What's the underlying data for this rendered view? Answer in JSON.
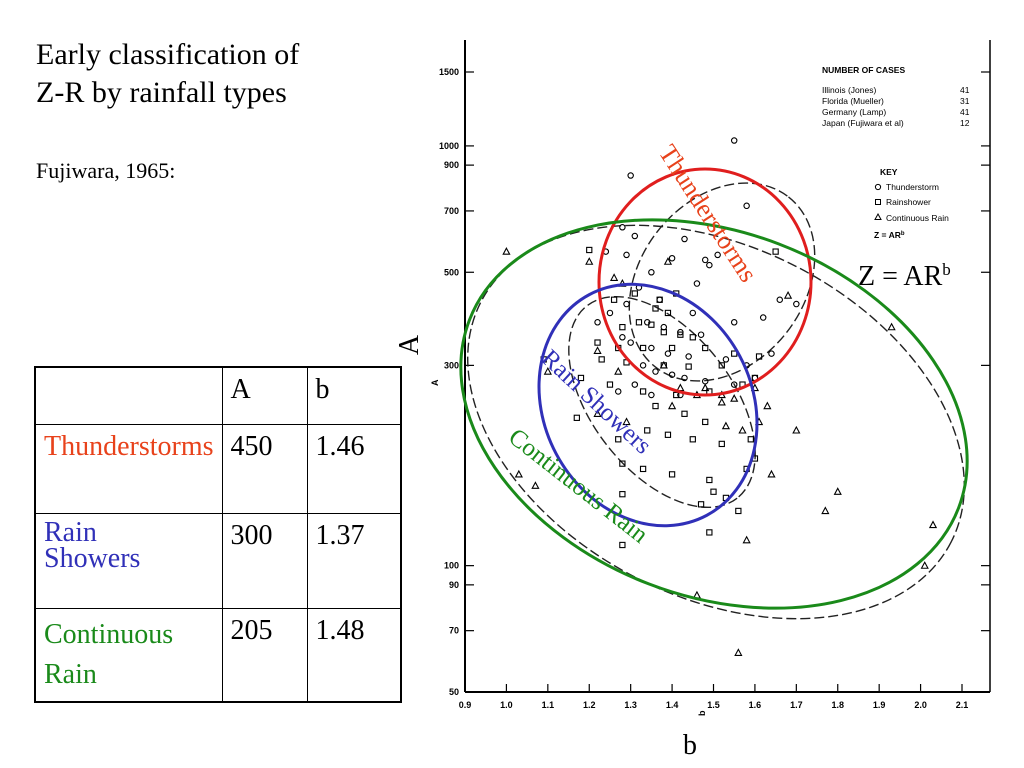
{
  "slide": {
    "title_line1": "Early classification of",
    "title_line2": "Z-R by rainfall  types",
    "subtitle": "Fujiwara, 1965:"
  },
  "table": {
    "headers": [
      "",
      "A",
      "b"
    ],
    "rows": [
      {
        "name": "Thunderstorms",
        "A": "450",
        "b": "1.46",
        "color": "#e8421b"
      },
      {
        "name_line1": "Rain",
        "name_line2": "Showers",
        "A": "300",
        "b": "1.37",
        "color": "#3030b8"
      },
      {
        "name_line1": "Continuous",
        "name_line2": "Rain",
        "A": "205",
        "b": "1.48",
        "color": "#1a8a1a"
      }
    ]
  },
  "chart_data": {
    "type": "scatter",
    "xlabel": "b",
    "ylabel": "A",
    "xscale": "linear",
    "yscale": "log",
    "xlim": [
      0.9,
      2.1
    ],
    "ylim": [
      50,
      1500
    ],
    "x_ticks": [
      "0.9",
      "1.0",
      "1.1",
      "1.2",
      "1.3",
      "1.4",
      "1.5",
      "1.6",
      "1.7",
      "1.8",
      "1.9",
      "2.0",
      "2.1"
    ],
    "y_ticks": [
      {
        "value": 50,
        "label": "50"
      },
      {
        "value": 70,
        "label": "70"
      },
      {
        "value": 90,
        "label": "90"
      },
      {
        "value": 100,
        "label": "100"
      },
      {
        "value": 300,
        "label": "300"
      },
      {
        "value": 500,
        "label": "500"
      },
      {
        "value": 700,
        "label": "700"
      },
      {
        "value": 900,
        "label": "900"
      },
      {
        "value": 1000,
        "label": "1000"
      },
      {
        "value": 1500,
        "label": "1500"
      }
    ],
    "inner_axis_labels": {
      "x": "b",
      "y": "A"
    },
    "equation": "Z = AR",
    "equation_sup": "b",
    "legend": {
      "title": "NUMBER OF CASES",
      "cases": [
        {
          "label": "Illinois (Jones)",
          "n": "41"
        },
        {
          "label": "Florida (Mueller)",
          "n": "31"
        },
        {
          "label": "Germany (Lamp)",
          "n": "41"
        },
        {
          "label": "Japan (Fujiwara et al)",
          "n": "12"
        }
      ],
      "key_title": "KEY",
      "key": [
        {
          "symbol": "circle",
          "label": "Thunderstorm"
        },
        {
          "symbol": "square",
          "label": "Rainshower"
        },
        {
          "symbol": "triangle",
          "label": "Continuous Rain"
        }
      ],
      "formula": "Z = AR",
      "formula_sup": "b"
    },
    "regions": [
      {
        "name": "Thunderstorms",
        "color": "#e8421b"
      },
      {
        "name": "Rain Showers",
        "color": "#3030b8"
      },
      {
        "name": "Continuous Rain",
        "color": "#1a8a1a"
      }
    ],
    "series": [
      {
        "name": "Thunderstorm",
        "symbol": "circle",
        "points": [
          [
            1.55,
            1030
          ],
          [
            1.3,
            850
          ],
          [
            1.58,
            720
          ],
          [
            1.28,
            640
          ],
          [
            1.31,
            610
          ],
          [
            1.43,
            600
          ],
          [
            1.24,
            560
          ],
          [
            1.29,
            550
          ],
          [
            1.4,
            540
          ],
          [
            1.51,
            550
          ],
          [
            1.48,
            535
          ],
          [
            1.49,
            520
          ],
          [
            1.32,
            460
          ],
          [
            1.37,
            430
          ],
          [
            1.45,
            400
          ],
          [
            1.55,
            380
          ],
          [
            1.62,
            390
          ],
          [
            1.66,
            430
          ],
          [
            1.7,
            420
          ],
          [
            1.34,
            380
          ],
          [
            1.38,
            370
          ],
          [
            1.42,
            360
          ],
          [
            1.47,
            355
          ],
          [
            1.28,
            350
          ],
          [
            1.3,
            340
          ],
          [
            1.35,
            330
          ],
          [
            1.39,
            320
          ],
          [
            1.44,
            315
          ],
          [
            1.53,
            310
          ],
          [
            1.58,
            300
          ],
          [
            1.33,
            300
          ],
          [
            1.36,
            290
          ],
          [
            1.4,
            285
          ],
          [
            1.43,
            280
          ],
          [
            1.48,
            275
          ],
          [
            1.31,
            270
          ],
          [
            1.27,
            260
          ],
          [
            1.35,
            255
          ],
          [
            1.42,
            255
          ],
          [
            1.55,
            270
          ],
          [
            1.6,
            280
          ],
          [
            1.64,
            320
          ],
          [
            1.25,
            400
          ],
          [
            1.29,
            420
          ],
          [
            1.22,
            380
          ],
          [
            1.35,
            500
          ],
          [
            1.46,
            470
          ]
        ]
      },
      {
        "name": "Rainshower",
        "symbol": "square",
        "points": [
          [
            1.2,
            565
          ],
          [
            1.31,
            445
          ],
          [
            1.41,
            445
          ],
          [
            1.26,
            430
          ],
          [
            1.37,
            430
          ],
          [
            1.36,
            410
          ],
          [
            1.39,
            400
          ],
          [
            1.32,
            380
          ],
          [
            1.35,
            375
          ],
          [
            1.28,
            370
          ],
          [
            1.38,
            360
          ],
          [
            1.42,
            355
          ],
          [
            1.45,
            350
          ],
          [
            1.22,
            340
          ],
          [
            1.27,
            330
          ],
          [
            1.33,
            330
          ],
          [
            1.4,
            330
          ],
          [
            1.48,
            330
          ],
          [
            1.55,
            320
          ],
          [
            1.61,
            315
          ],
          [
            1.23,
            310
          ],
          [
            1.29,
            305
          ],
          [
            1.38,
            300
          ],
          [
            1.44,
            298
          ],
          [
            1.52,
            300
          ],
          [
            1.09,
            310
          ],
          [
            1.18,
            280
          ],
          [
            1.25,
            270
          ],
          [
            1.33,
            260
          ],
          [
            1.41,
            255
          ],
          [
            1.49,
            260
          ],
          [
            1.57,
            270
          ],
          [
            1.6,
            280
          ],
          [
            1.36,
            240
          ],
          [
            1.43,
            230
          ],
          [
            1.48,
            220
          ],
          [
            1.34,
            210
          ],
          [
            1.39,
            205
          ],
          [
            1.45,
            200
          ],
          [
            1.52,
            195
          ],
          [
            1.59,
            200
          ],
          [
            1.17,
            225
          ],
          [
            1.27,
            200
          ],
          [
            1.28,
            175
          ],
          [
            1.33,
            170
          ],
          [
            1.4,
            165
          ],
          [
            1.49,
            160
          ],
          [
            1.5,
            150
          ],
          [
            1.58,
            170
          ],
          [
            1.6,
            180
          ],
          [
            1.53,
            145
          ],
          [
            1.56,
            135
          ],
          [
            1.28,
            148
          ],
          [
            1.28,
            112
          ],
          [
            1.47,
            140
          ],
          [
            1.49,
            120
          ],
          [
            1.65,
            560
          ]
        ]
      },
      {
        "name": "Continuous Rain",
        "symbol": "triangle",
        "points": [
          [
            1.0,
            560
          ],
          [
            1.2,
            530
          ],
          [
            1.26,
            485
          ],
          [
            1.28,
            470
          ],
          [
            1.39,
            530
          ],
          [
            1.68,
            440
          ],
          [
            1.93,
            370
          ],
          [
            1.22,
            325
          ],
          [
            1.27,
            290
          ],
          [
            1.38,
            300
          ],
          [
            1.42,
            265
          ],
          [
            1.46,
            255
          ],
          [
            1.48,
            265
          ],
          [
            1.52,
            255
          ],
          [
            1.55,
            250
          ],
          [
            1.6,
            265
          ],
          [
            1.52,
            245
          ],
          [
            1.1,
            290
          ],
          [
            1.22,
            230
          ],
          [
            1.29,
            220
          ],
          [
            1.4,
            240
          ],
          [
            1.53,
            215
          ],
          [
            1.03,
            165
          ],
          [
            1.07,
            155
          ],
          [
            1.57,
            210
          ],
          [
            1.61,
            220
          ],
          [
            1.63,
            240
          ],
          [
            1.8,
            150
          ],
          [
            1.77,
            135
          ],
          [
            2.03,
            125
          ],
          [
            2.01,
            100
          ],
          [
            1.58,
            115
          ],
          [
            1.46,
            85
          ],
          [
            1.56,
            62
          ],
          [
            1.64,
            165
          ],
          [
            1.7,
            210
          ]
        ]
      }
    ]
  }
}
